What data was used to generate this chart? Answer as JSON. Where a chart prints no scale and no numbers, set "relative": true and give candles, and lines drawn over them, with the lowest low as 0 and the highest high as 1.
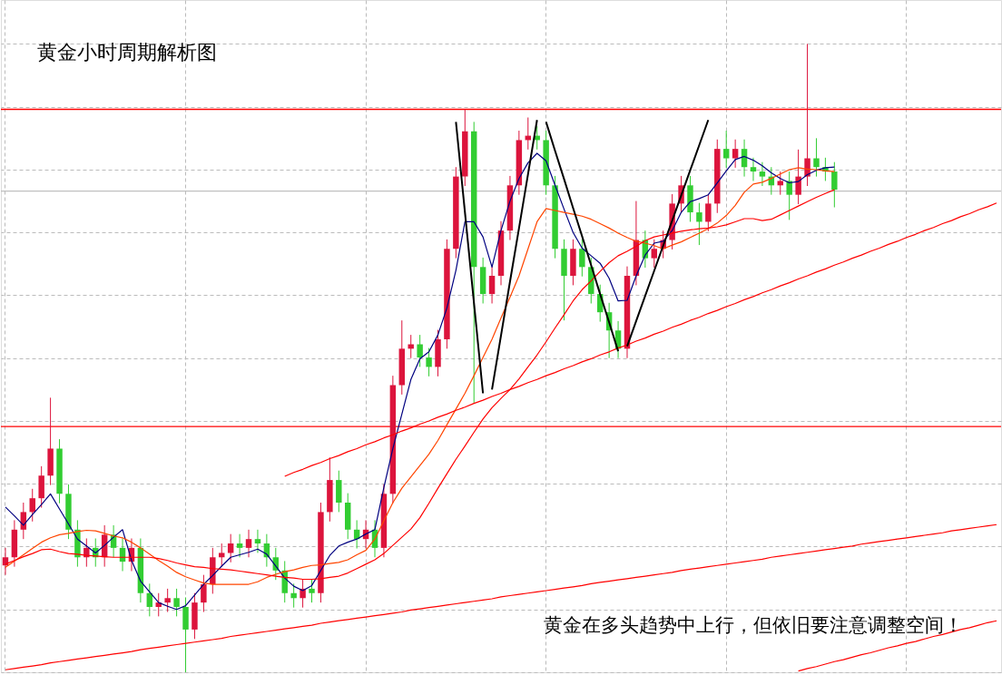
{
  "chart_data": {
    "type": "candlestick",
    "relative": true,
    "title": "黄金小时周期解析图",
    "annotations": [
      "黄金在多头趋势中上行，但依旧要注意调整空间！"
    ],
    "grid": true,
    "categories": [
      null,
      null,
      null,
      null,
      null,
      null,
      null,
      null,
      null,
      null,
      null,
      null,
      null,
      null,
      null,
      null,
      null,
      null,
      null,
      null,
      null,
      null,
      null,
      null,
      null,
      null,
      null,
      null,
      null,
      null,
      null,
      null,
      null,
      null,
      null,
      null,
      null,
      null,
      null,
      null,
      null,
      null,
      null,
      null,
      null,
      null,
      null,
      null,
      null,
      null,
      null,
      null,
      null,
      null,
      null,
      null,
      null,
      null,
      null,
      null,
      null,
      null,
      null,
      null,
      null,
      null,
      null,
      null,
      null,
      null,
      null,
      null,
      null,
      null,
      null,
      null,
      null,
      null,
      null,
      null,
      null,
      null,
      null,
      null,
      null,
      null,
      null,
      null,
      null,
      null,
      null,
      null,
      null,
      null,
      null,
      null,
      null,
      null,
      null,
      null,
      null,
      null,
      null,
      null,
      null,
      null,
      null,
      null,
      null,
      null,
      null
    ],
    "ohlc": [
      [
        0.17,
        0.198,
        0.155,
        0.183
      ],
      [
        0.183,
        0.242,
        0.168,
        0.227
      ],
      [
        0.227,
        0.27,
        0.212,
        0.255
      ],
      [
        0.255,
        0.292,
        0.24,
        0.277
      ],
      [
        0.277,
        0.328,
        0.262,
        0.313
      ],
      [
        0.313,
        0.437,
        0.298,
        0.356
      ],
      [
        0.356,
        0.371,
        0.269,
        0.284
      ],
      [
        0.284,
        0.299,
        0.212,
        0.227
      ],
      [
        0.227,
        0.242,
        0.168,
        0.183
      ],
      [
        0.183,
        0.213,
        0.168,
        0.198
      ],
      [
        0.198,
        0.213,
        0.168,
        0.183
      ],
      [
        0.183,
        0.234,
        0.168,
        0.219
      ],
      [
        0.219,
        0.234,
        0.183,
        0.198
      ],
      [
        0.198,
        0.213,
        0.161,
        0.176
      ],
      [
        0.176,
        0.213,
        0.161,
        0.198
      ],
      [
        0.198,
        0.213,
        0.111,
        0.126
      ],
      [
        0.126,
        0.141,
        0.089,
        0.104
      ],
      [
        0.104,
        0.126,
        0.089,
        0.111
      ],
      [
        0.111,
        0.133,
        0.096,
        0.118
      ],
      [
        0.118,
        0.133,
        0.089,
        0.104
      ],
      [
        0.104,
        0.119,
        0.0,
        0.068
      ],
      [
        0.068,
        0.126,
        0.053,
        0.111
      ],
      [
        0.111,
        0.155,
        0.096,
        0.14
      ],
      [
        0.14,
        0.198,
        0.125,
        0.183
      ],
      [
        0.183,
        0.205,
        0.168,
        0.19
      ],
      [
        0.19,
        0.22,
        0.175,
        0.205
      ],
      [
        0.205,
        0.22,
        0.183,
        0.198
      ],
      [
        0.198,
        0.227,
        0.183,
        0.212
      ],
      [
        0.212,
        0.227,
        0.19,
        0.205
      ],
      [
        0.205,
        0.22,
        0.168,
        0.183
      ],
      [
        0.183,
        0.198,
        0.147,
        0.162
      ],
      [
        0.162,
        0.177,
        0.111,
        0.126
      ],
      [
        0.126,
        0.141,
        0.103,
        0.118
      ],
      [
        0.118,
        0.148,
        0.103,
        0.133
      ],
      [
        0.133,
        0.148,
        0.111,
        0.126
      ],
      [
        0.126,
        0.27,
        0.111,
        0.255
      ],
      [
        0.255,
        0.342,
        0.24,
        0.306
      ],
      [
        0.306,
        0.321,
        0.255,
        0.27
      ],
      [
        0.27,
        0.285,
        0.212,
        0.227
      ],
      [
        0.227,
        0.242,
        0.197,
        0.212
      ],
      [
        0.212,
        0.242,
        0.197,
        0.227
      ],
      [
        0.227,
        0.242,
        0.183,
        0.198
      ],
      [
        0.198,
        0.299,
        0.183,
        0.284
      ],
      [
        0.284,
        0.472,
        0.269,
        0.457
      ],
      [
        0.457,
        0.56,
        0.442,
        0.515
      ],
      [
        0.515,
        0.537,
        0.5,
        0.522
      ],
      [
        0.522,
        0.537,
        0.486,
        0.501
      ],
      [
        0.501,
        0.516,
        0.471,
        0.486
      ],
      [
        0.486,
        0.545,
        0.471,
        0.53
      ],
      [
        0.53,
        0.689,
        0.515,
        0.674
      ],
      [
        0.674,
        0.804,
        0.659,
        0.789
      ],
      [
        0.789,
        0.896,
        0.774,
        0.861
      ],
      [
        0.861,
        0.876,
        0.429,
        0.645
      ],
      [
        0.645,
        0.66,
        0.587,
        0.602
      ],
      [
        0.602,
        0.646,
        0.587,
        0.631
      ],
      [
        0.631,
        0.718,
        0.616,
        0.703
      ],
      [
        0.703,
        0.79,
        0.688,
        0.775
      ],
      [
        0.775,
        0.862,
        0.76,
        0.847
      ],
      [
        0.847,
        0.883,
        0.832,
        0.854
      ],
      [
        0.854,
        0.869,
        0.832,
        0.847
      ],
      [
        0.847,
        0.862,
        0.76,
        0.775
      ],
      [
        0.775,
        0.79,
        0.659,
        0.674
      ],
      [
        0.674,
        0.689,
        0.56,
        0.631
      ],
      [
        0.631,
        0.689,
        0.616,
        0.674
      ],
      [
        0.674,
        0.689,
        0.63,
        0.645
      ],
      [
        0.645,
        0.66,
        0.587,
        0.602
      ],
      [
        0.602,
        0.617,
        0.558,
        0.573
      ],
      [
        0.573,
        0.588,
        0.5,
        0.544
      ],
      [
        0.544,
        0.559,
        0.5,
        0.515
      ],
      [
        0.515,
        0.646,
        0.5,
        0.631
      ],
      [
        0.631,
        0.75,
        0.616,
        0.688
      ],
      [
        0.688,
        0.703,
        0.644,
        0.659
      ],
      [
        0.659,
        0.689,
        0.644,
        0.674
      ],
      [
        0.674,
        0.703,
        0.659,
        0.688
      ],
      [
        0.688,
        0.761,
        0.673,
        0.746
      ],
      [
        0.746,
        0.79,
        0.731,
        0.775
      ],
      [
        0.775,
        0.79,
        0.717,
        0.732
      ],
      [
        0.732,
        0.747,
        0.68,
        0.717
      ],
      [
        0.717,
        0.761,
        0.702,
        0.746
      ],
      [
        0.746,
        0.848,
        0.731,
        0.833
      ],
      [
        0.833,
        0.862,
        0.803,
        0.818
      ],
      [
        0.818,
        0.848,
        0.803,
        0.833
      ],
      [
        0.833,
        0.848,
        0.789,
        0.804
      ],
      [
        0.804,
        0.819,
        0.782,
        0.797
      ],
      [
        0.797,
        0.812,
        0.774,
        0.789
      ],
      [
        0.789,
        0.804,
        0.76,
        0.775
      ],
      [
        0.775,
        0.797,
        0.76,
        0.782
      ],
      [
        0.782,
        0.797,
        0.72,
        0.76
      ],
      [
        0.76,
        0.832,
        0.745,
        0.789
      ],
      [
        0.789,
        1.0,
        0.774,
        0.818
      ],
      [
        0.818,
        0.85,
        0.789,
        0.804
      ],
      [
        0.804,
        0.819,
        0.782,
        0.797
      ],
      [
        0.797,
        0.812,
        0.74,
        0.768
      ],
      null,
      null,
      null,
      null,
      null,
      null,
      null,
      null,
      null,
      null,
      null,
      null,
      null,
      null,
      null,
      null,
      null,
      null
    ],
    "series": [
      {
        "type": "line",
        "color": "#000080",
        "values": [
          0.263,
          0.249,
          0.234,
          0.251,
          0.267,
          0.284,
          0.26,
          0.236,
          0.212,
          0.201,
          0.19,
          0.202,
          0.215,
          0.227,
          0.178,
          0.145,
          0.128,
          0.111,
          0.105,
          0.1,
          0.106,
          0.123,
          0.14,
          0.154,
          0.169,
          0.183,
          0.187,
          0.191,
          0.196,
          0.188,
          0.169,
          0.15,
          0.137,
          0.13,
          0.138,
          0.162,
          0.186,
          0.201,
          0.207,
          0.212,
          0.22,
          0.227,
          0.294,
          0.356,
          0.411,
          0.466,
          0.499,
          0.51,
          0.537,
          0.58,
          0.64,
          0.717,
          0.717,
          0.693,
          0.645,
          0.703,
          0.75,
          0.786,
          0.811,
          0.826,
          0.814,
          0.775,
          0.737,
          0.7,
          0.675,
          0.663,
          0.651,
          0.627,
          0.591,
          0.592,
          0.631,
          0.664,
          0.683,
          0.686,
          0.703,
          0.732,
          0.749,
          0.754,
          0.76,
          0.779,
          0.798,
          0.816,
          0.821,
          0.815,
          0.806,
          0.795,
          0.786,
          0.779,
          0.781,
          0.792,
          0.799,
          0.803,
          0.804,
          null,
          null,
          null,
          null,
          null,
          null,
          null,
          null,
          null,
          null,
          null,
          null,
          null,
          null,
          null,
          null,
          null,
          null
        ]
      },
      {
        "type": "line",
        "color": "#ff4500",
        "values": [
          0.167,
          0.177,
          0.187,
          0.197,
          0.207,
          0.214,
          0.219,
          0.221,
          0.224,
          0.226,
          0.225,
          0.221,
          0.217,
          0.214,
          0.207,
          0.198,
          0.188,
          0.178,
          0.169,
          0.159,
          0.152,
          0.147,
          0.142,
          0.14,
          0.14,
          0.14,
          0.14,
          0.14,
          0.144,
          0.151,
          0.156,
          0.16,
          0.163,
          0.167,
          0.17,
          0.171,
          0.173,
          0.175,
          0.179,
          0.187,
          0.194,
          0.212,
          0.241,
          0.27,
          0.293,
          0.311,
          0.329,
          0.347,
          0.369,
          0.394,
          0.419,
          0.444,
          0.472,
          0.501,
          0.53,
          0.564,
          0.597,
          0.631,
          0.674,
          0.717,
          0.738,
          0.735,
          0.732,
          0.729,
          0.726,
          0.721,
          0.714,
          0.707,
          0.699,
          0.692,
          0.686,
          0.683,
          0.679,
          0.674,
          0.68,
          0.685,
          0.692,
          0.699,
          0.706,
          0.715,
          0.727,
          0.743,
          0.764,
          0.777,
          0.78,
          0.786,
          0.793,
          0.8,
          0.803,
          0.801,
          0.8,
          0.798,
          0.797,
          null,
          null,
          null,
          null,
          null,
          null,
          null,
          null,
          null,
          null,
          null,
          null,
          null,
          null,
          null,
          null,
          null,
          null
        ]
      },
      {
        "type": "line",
        "color": "#ff0000",
        "values": [
          0.172,
          0.178,
          0.184,
          0.189,
          0.195,
          0.196,
          0.192,
          0.189,
          0.188,
          0.186,
          0.185,
          0.184,
          0.183,
          0.183,
          0.183,
          0.183,
          0.183,
          0.181,
          0.178,
          0.174,
          0.171,
          0.168,
          0.167,
          0.165,
          0.164,
          0.163,
          0.161,
          0.159,
          0.157,
          0.155,
          0.153,
          0.151,
          0.15,
          0.148,
          0.148,
          0.149,
          0.151,
          0.153,
          0.158,
          0.165,
          0.172,
          0.179,
          0.189,
          0.202,
          0.215,
          0.228,
          0.246,
          0.269,
          0.293,
          0.316,
          0.339,
          0.36,
          0.382,
          0.403,
          0.421,
          0.436,
          0.45,
          0.467,
          0.486,
          0.505,
          0.526,
          0.548,
          0.569,
          0.591,
          0.609,
          0.623,
          0.638,
          0.652,
          0.663,
          0.67,
          0.678,
          0.687,
          0.693,
          0.696,
          0.699,
          0.702,
          0.704,
          0.706,
          0.707,
          0.709,
          0.712,
          0.717,
          0.722,
          0.722,
          0.719,
          0.721,
          0.728,
          0.735,
          0.742,
          0.749,
          0.756,
          0.762,
          0.768,
          null,
          null,
          null,
          null,
          null,
          null,
          null,
          null,
          null,
          null,
          null,
          null,
          null,
          null,
          null,
          null,
          null,
          null
        ]
      },
      {
        "type": "line",
        "color": "#ff0000",
        "values": [
          null,
          null,
          null,
          null,
          null,
          null,
          null,
          null,
          null,
          null,
          null,
          null,
          null,
          null,
          null,
          null,
          null,
          null,
          null,
          null,
          null,
          null,
          null,
          null,
          null,
          null,
          null,
          null,
          null,
          null,
          null,
          0.312,
          0.318,
          0.323,
          0.329,
          0.334,
          0.34,
          0.345,
          0.351,
          0.356,
          0.362,
          0.367,
          0.373,
          0.378,
          0.384,
          0.389,
          0.395,
          0.4,
          0.406,
          0.411,
          0.417,
          0.422,
          0.428,
          0.433,
          0.439,
          0.444,
          0.45,
          0.455,
          0.461,
          0.466,
          0.472,
          0.477,
          0.483,
          0.488,
          0.494,
          0.499,
          0.505,
          0.51,
          0.516,
          0.521,
          0.527,
          0.532,
          0.538,
          0.543,
          0.549,
          0.554,
          0.56,
          0.565,
          0.571,
          0.576,
          0.582,
          0.587,
          0.593,
          0.598,
          0.604,
          0.609,
          0.615,
          0.62,
          0.626,
          0.631,
          0.637,
          0.642,
          0.648,
          0.653,
          0.659,
          0.664,
          0.67,
          0.675,
          0.681,
          0.686,
          0.692,
          0.697,
          0.703,
          0.708,
          0.714,
          0.719,
          0.725,
          0.73,
          0.736,
          0.741,
          0.747
        ]
      },
      {
        "type": "line",
        "color": "#ff0000",
        "values": [
          0.004,
          0.006,
          0.008,
          0.01,
          0.012,
          0.015,
          0.017,
          0.019,
          0.021,
          0.023,
          0.025,
          0.027,
          0.029,
          0.031,
          0.033,
          0.036,
          0.038,
          0.04,
          0.042,
          0.044,
          0.046,
          0.048,
          0.05,
          0.052,
          0.054,
          0.057,
          0.059,
          0.061,
          0.063,
          0.065,
          0.067,
          0.069,
          0.071,
          0.073,
          0.075,
          0.078,
          0.08,
          0.082,
          0.084,
          0.086,
          0.088,
          0.09,
          0.092,
          0.094,
          0.096,
          0.099,
          0.101,
          0.103,
          0.105,
          0.107,
          0.109,
          0.111,
          0.113,
          0.115,
          0.117,
          0.12,
          0.122,
          0.124,
          0.126,
          0.128,
          0.13,
          0.132,
          0.134,
          0.136,
          0.138,
          0.141,
          0.143,
          0.145,
          0.147,
          0.149,
          0.151,
          0.153,
          0.155,
          0.157,
          0.159,
          0.162,
          0.164,
          0.166,
          0.168,
          0.17,
          0.172,
          0.174,
          0.176,
          0.178,
          0.18,
          0.183,
          0.185,
          0.187,
          0.189,
          0.191,
          0.193,
          0.195,
          0.197,
          0.199,
          0.201,
          0.204,
          0.206,
          0.208,
          0.21,
          0.212,
          0.214,
          0.216,
          0.218,
          0.22,
          0.222,
          0.225,
          0.227,
          0.229,
          0.231,
          0.233,
          0.235
        ]
      },
      {
        "type": "line",
        "color": "#ff0000",
        "values": [
          null,
          null,
          null,
          null,
          null,
          null,
          null,
          null,
          null,
          null,
          null,
          null,
          null,
          null,
          null,
          null,
          null,
          null,
          null,
          null,
          null,
          null,
          null,
          null,
          null,
          null,
          null,
          null,
          null,
          null,
          null,
          null,
          null,
          null,
          null,
          null,
          null,
          null,
          null,
          null,
          null,
          null,
          null,
          null,
          null,
          null,
          null,
          null,
          null,
          null,
          null,
          null,
          null,
          null,
          null,
          null,
          null,
          null,
          null,
          null,
          null,
          null,
          null,
          null,
          null,
          null,
          null,
          null,
          null,
          null,
          null,
          null,
          null,
          null,
          null,
          null,
          null,
          null,
          null,
          null,
          null,
          null,
          null,
          null,
          null,
          null,
          null,
          null,
          0.002,
          0.006,
          0.009,
          0.013,
          0.017,
          0.02,
          0.024,
          0.028,
          0.031,
          0.035,
          0.039,
          0.042,
          0.046,
          0.049,
          0.053,
          0.057,
          0.06,
          0.064,
          0.068,
          0.071,
          0.075,
          0.079,
          0.082
        ]
      },
      {
        "type": "line",
        "color": "#000000",
        "values": [
          null,
          null,
          null,
          null,
          null,
          null,
          null,
          null,
          null,
          null,
          null,
          null,
          null,
          null,
          null,
          null,
          null,
          null,
          null,
          null,
          null,
          null,
          null,
          null,
          null,
          null,
          null,
          null,
          null,
          null,
          null,
          null,
          null,
          null,
          null,
          null,
          null,
          null,
          null,
          null,
          null,
          null,
          null,
          null,
          null,
          null,
          null,
          null,
          null,
          null,
          0.876,
          0.732,
          0.588,
          0.444,
          null,
          null,
          null,
          null,
          null,
          null,
          null,
          null,
          null,
          null,
          null,
          null,
          null,
          null,
          null,
          null,
          null,
          null,
          null,
          null,
          null,
          null,
          null,
          null,
          null,
          null,
          null,
          null,
          null,
          null,
          null,
          null,
          null,
          null,
          null,
          null,
          null,
          null,
          null,
          null,
          null,
          null,
          null,
          null,
          null,
          null,
          null,
          null,
          null,
          null,
          null,
          null,
          null,
          null,
          null,
          null,
          null
        ]
      },
      {
        "type": "line",
        "color": "#000000",
        "values": [
          null,
          null,
          null,
          null,
          null,
          null,
          null,
          null,
          null,
          null,
          null,
          null,
          null,
          null,
          null,
          null,
          null,
          null,
          null,
          null,
          null,
          null,
          null,
          null,
          null,
          null,
          null,
          null,
          null,
          null,
          null,
          null,
          null,
          null,
          null,
          null,
          null,
          null,
          null,
          null,
          null,
          null,
          null,
          null,
          null,
          null,
          null,
          null,
          null,
          null,
          null,
          null,
          null,
          null,
          0.45,
          0.536,
          0.622,
          0.707,
          0.793,
          0.879,
          null,
          null,
          null,
          null,
          null,
          null,
          null,
          null,
          null,
          null,
          null,
          null,
          null,
          null,
          null,
          null,
          null,
          null,
          null,
          null,
          null,
          null,
          null,
          null,
          null,
          null,
          null,
          null,
          null,
          null,
          null,
          null,
          null,
          null,
          null,
          null,
          null,
          null,
          null,
          null,
          null,
          null,
          null,
          null,
          null,
          null,
          null,
          null,
          null,
          null,
          null
        ]
      },
      {
        "type": "line",
        "color": "#000000",
        "values": [
          null,
          null,
          null,
          null,
          null,
          null,
          null,
          null,
          null,
          null,
          null,
          null,
          null,
          null,
          null,
          null,
          null,
          null,
          null,
          null,
          null,
          null,
          null,
          null,
          null,
          null,
          null,
          null,
          null,
          null,
          null,
          null,
          null,
          null,
          null,
          null,
          null,
          null,
          null,
          null,
          null,
          null,
          null,
          null,
          null,
          null,
          null,
          null,
          null,
          null,
          null,
          null,
          null,
          null,
          null,
          null,
          null,
          null,
          null,
          null,
          0.876,
          0.83,
          0.785,
          0.739,
          0.694,
          0.648,
          0.602,
          0.557,
          0.511,
          null,
          null,
          null,
          null,
          null,
          null,
          null,
          null,
          null,
          null,
          null,
          null,
          null,
          null,
          null,
          null,
          null,
          null,
          null,
          null,
          null,
          null,
          null,
          null,
          null,
          null,
          null,
          null,
          null,
          null,
          null,
          null,
          null,
          null,
          null,
          null,
          null,
          null,
          null,
          null,
          null,
          null
        ]
      },
      {
        "type": "line",
        "color": "#000000",
        "values": [
          null,
          null,
          null,
          null,
          null,
          null,
          null,
          null,
          null,
          null,
          null,
          null,
          null,
          null,
          null,
          null,
          null,
          null,
          null,
          null,
          null,
          null,
          null,
          null,
          null,
          null,
          null,
          null,
          null,
          null,
          null,
          null,
          null,
          null,
          null,
          null,
          null,
          null,
          null,
          null,
          null,
          null,
          null,
          null,
          null,
          null,
          null,
          null,
          null,
          null,
          null,
          null,
          null,
          null,
          null,
          null,
          null,
          null,
          null,
          null,
          null,
          null,
          null,
          null,
          null,
          null,
          null,
          null,
          null,
          0.519,
          0.559,
          0.599,
          0.639,
          0.679,
          0.719,
          0.759,
          0.799,
          0.839,
          0.879,
          null,
          null,
          null,
          null,
          null,
          null,
          null,
          null,
          null,
          null,
          null,
          null,
          null,
          null,
          null,
          null,
          null,
          null,
          null,
          null,
          null,
          null,
          null,
          null,
          null,
          null,
          null,
          null,
          null,
          null,
          null,
          null
        ]
      }
    ],
    "ref_lines": [
      {
        "axis": "y",
        "value": 0.896,
        "color": "#ff0000"
      },
      {
        "axis": "y",
        "value": 0.391,
        "color": "#ff0000"
      },
      {
        "axis": "y",
        "value": 0.766,
        "color": "#c0c0c0"
      }
    ]
  }
}
